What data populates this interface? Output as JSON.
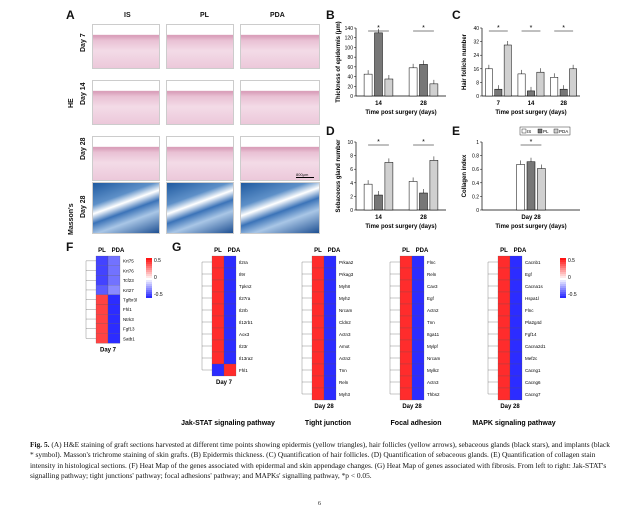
{
  "panel_letters": {
    "A": "A",
    "B": "B",
    "C": "C",
    "D": "D",
    "E": "E",
    "F": "F",
    "G": "G"
  },
  "panel_a": {
    "col_headers": [
      "IS",
      "PL",
      "PDA"
    ],
    "row_labels": [
      "Day 7",
      "Day 14",
      "Day 28",
      "Day 28"
    ],
    "group_labels": [
      "HE",
      "Masson's"
    ],
    "scale_bar": "800μm"
  },
  "chart_data": [
    {
      "type": "bar",
      "panel": "B",
      "title": "",
      "xlabel": "Time post surgery (days)",
      "ylabel": "Thickness of epidermis (μm)",
      "categories": [
        "14",
        "28"
      ],
      "ylim": [
        0,
        140
      ],
      "yticks": [
        "0",
        "20",
        "40",
        "60",
        "80",
        "100",
        "120",
        "140"
      ],
      "series": [
        {
          "values": [
            45,
            58
          ]
        },
        {
          "values": [
            130,
            65
          ]
        },
        {
          "values": [
            35,
            25
          ]
        }
      ],
      "annotations": [
        "*",
        "*"
      ]
    },
    {
      "type": "bar",
      "panel": "C",
      "title": "",
      "xlabel": "Time post surgery (days)",
      "ylabel": "Hair follicle number",
      "categories": [
        "7",
        "14",
        "28"
      ],
      "ylim": [
        0,
        40
      ],
      "yticks": [
        "0",
        "8",
        "16",
        "24",
        "32",
        "40"
      ],
      "series": [
        {
          "values": [
            16,
            13,
            11
          ]
        },
        {
          "values": [
            4,
            3,
            4
          ]
        },
        {
          "values": [
            30,
            14,
            16
          ]
        }
      ],
      "annotations": [
        "*",
        "*",
        "*",
        "*"
      ]
    },
    {
      "type": "bar",
      "panel": "D",
      "title": "",
      "xlabel": "Time post surgery (days)",
      "ylabel": "Sebaceous gland number",
      "categories": [
        "14",
        "28"
      ],
      "ylim": [
        0,
        10
      ],
      "yticks": [
        "0",
        "2",
        "4",
        "6",
        "8",
        "10"
      ],
      "series": [
        {
          "values": [
            3.8,
            4.2
          ]
        },
        {
          "values": [
            2.2,
            2.5
          ]
        },
        {
          "values": [
            7,
            7.3
          ]
        }
      ],
      "annotations": [
        "*",
        "*"
      ]
    },
    {
      "type": "bar",
      "panel": "E",
      "title": "",
      "xlabel": "Time post surgery (days)",
      "ylabel": "Collagen index",
      "categories": [
        "Day 28"
      ],
      "ylim": [
        0,
        1
      ],
      "yticks": [
        "0",
        "0.2",
        "0.4",
        "0.6",
        "0.8",
        "1"
      ],
      "series": [
        {
          "name": "IS",
          "values": [
            0.67
          ]
        },
        {
          "name": "PL",
          "values": [
            0.71
          ]
        },
        {
          "name": "PDA",
          "values": [
            0.61
          ]
        }
      ],
      "annotations": [
        "*"
      ]
    }
  ],
  "heat_f": {
    "cols": [
      "PL",
      "PDA"
    ],
    "genes": [
      "Krt75",
      "Krt76",
      "Tcf23",
      "Krt27",
      "Tgfbr3l",
      "Fhl1",
      "Ntrk3",
      "Fgf13",
      "Satb1"
    ],
    "values": [
      [
        -0.8,
        -0.6
      ],
      [
        -0.8,
        -0.6
      ],
      [
        -0.8,
        -0.6
      ],
      [
        -0.7,
        -0.5
      ],
      [
        0.8,
        -0.9
      ],
      [
        0.8,
        -0.9
      ],
      [
        0.8,
        -0.9
      ],
      [
        0.8,
        -0.9
      ],
      [
        0.8,
        -0.9
      ]
    ],
    "legend": [
      "0.5",
      "0",
      "-0.5"
    ],
    "day": "Day 7"
  },
  "heat_g": [
    {
      "genes": [
        "Il2ra",
        "Il9r",
        "Tpkn2",
        "Il27ra",
        "Il2rb",
        "Il12rb1",
        "Aox3",
        "Il23r",
        "Il13ra2",
        "Fhl1"
      ],
      "pattern": [
        1,
        1,
        1,
        1,
        1,
        1,
        1,
        1,
        1,
        -1
      ],
      "day": "Day 7",
      "title": "Jak-STAT signaling pathway"
    },
    {
      "genes": [
        "Prkaa2",
        "Prkag3",
        "Myh8",
        "Myh2",
        "Nrcam",
        "Cldn2",
        "Actn3",
        "Amot",
        "Actn2",
        "Tnn",
        "Reln",
        "Myh3"
      ],
      "pattern": [
        1,
        1,
        1,
        1,
        1,
        1,
        1,
        1,
        1,
        1,
        1,
        1
      ],
      "day": "Day 28",
      "title": "Tight junction"
    },
    {
      "genes": [
        "Flnc",
        "Reln",
        "Cav3",
        "Egf",
        "Actn2",
        "Tnn",
        "Itga11",
        "Mylpf",
        "Nrcam",
        "Mylk2",
        "Actn3",
        "Thbs2"
      ],
      "pattern": [
        1,
        1,
        1,
        1,
        1,
        1,
        1,
        1,
        1,
        1,
        1,
        1
      ],
      "day": "Day 28",
      "title": "Focal adhesion"
    },
    {
      "genes": [
        "Cacnb1",
        "Egf",
        "Cacna1s",
        "Hspa1l",
        "Flnc",
        "Pla2g4d",
        "Fgf14",
        "Cacna2d1",
        "Mef2c",
        "Cacng1",
        "Cacng6",
        "Cacng7"
      ],
      "pattern": [
        1,
        1,
        1,
        1,
        1,
        1,
        1,
        1,
        1,
        1,
        1,
        1
      ],
      "day": "Day 28",
      "title": "MAPK signaling pathway",
      "legend": [
        "0.5",
        "0",
        "-0.5"
      ]
    }
  ],
  "g_cols": [
    "PL",
    "PDA"
  ],
  "caption": {
    "lead": "Fig. 5.",
    "text": "(A) H&E staining of graft sections harvested at different time points showing epidermis (yellow triangles), hair follicles (yellow arrows), sebaceous glands (black stars), and implants (black * symbol). Masson's trichrome staining of skin grafts. (B) Epidermis thickness. (C) Quantification of hair follicles. (D) Quantification of sebaceous glands. (E) Quantification of collagen stain intensity in histological sections. (F) Heat Map of the genes associated with epidermal and skin appendage changes. (G) Heat Map of genes associated with fibrosis. From left to right: Jak-STAT's signalling pathway; tight junctions' pathway; focal adhesions' pathway; and MAPKs' signalling pathway, *p < 0.05."
  },
  "page_number": "6"
}
